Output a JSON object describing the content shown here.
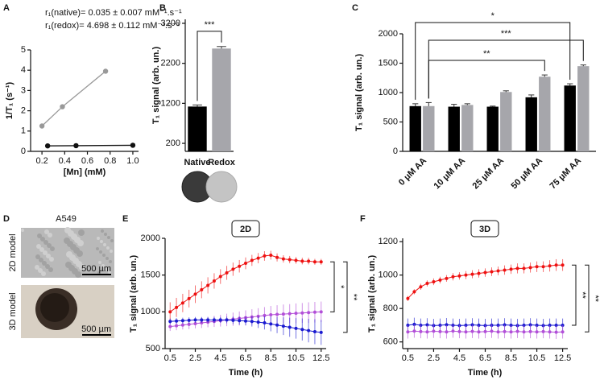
{
  "chart_data": [
    {
      "type": "line",
      "label": "A",
      "annotations": [
        "r₁(native)= 0.035 ± 0.007 mM⁻¹.s⁻¹",
        "r₁(redox)= 4.698 ± 0.112 mM⁻¹.s⁻¹"
      ],
      "xlabel": "[Mn] (mM)",
      "ylabel": "1/T₁ (s⁻¹)",
      "xlim": [
        0.1,
        1.05
      ],
      "xticks": [
        0.2,
        0.4,
        0.6,
        0.8,
        {
          "value": 1,
          "label": "1.0"
        }
      ],
      "ylim": [
        0,
        5
      ],
      "yticks": [
        0,
        1,
        2,
        3,
        4,
        5
      ],
      "markers": true,
      "series": [
        {
          "color": "#111111",
          "x": [
            0.25,
            0.5,
            1.0
          ],
          "values": [
            0.27,
            0.28,
            0.3
          ]
        },
        {
          "color": "#999999",
          "x": [
            0.2,
            0.38,
            0.76
          ],
          "values": [
            1.25,
            2.2,
            3.95
          ]
        }
      ]
    },
    {
      "type": "bar",
      "label": "B",
      "ylabel": "T₁ signal (arb. un.)",
      "categories": [
        "Native",
        "Redox"
      ],
      "values": [
        1120,
        2570
      ],
      "errors": [
        40,
        50
      ],
      "colors": [
        "#000000",
        "#a6a6ab"
      ],
      "ylim": [
        0,
        3300
      ],
      "yticks": [
        200,
        1200,
        2200,
        3200
      ],
      "significance": [
        "***"
      ]
    },
    {
      "type": "bar",
      "label": "C",
      "ylabel": "T₁ signal (arb. un.)",
      "categories": [
        "0 μM AA",
        "10 μM AA",
        "25 μM AA",
        "50 μM AA",
        "75 μM AA"
      ],
      "series": [
        {
          "color": "#000000",
          "values": [
            770,
            760,
            760,
            920,
            1120
          ],
          "errors": [
            40,
            40,
            10,
            40,
            30
          ]
        },
        {
          "color": "#a6a6ab",
          "values": [
            770,
            790,
            1010,
            1270,
            1450
          ],
          "errors": [
            60,
            20,
            20,
            30,
            20
          ]
        }
      ],
      "ylim": [
        0,
        2000
      ],
      "yticks": [
        0,
        500,
        1000,
        1500,
        2000
      ],
      "significance": [
        "*",
        "***",
        "**"
      ]
    },
    {
      "type": "image",
      "label": "D",
      "title": "A549",
      "captions": [
        "2D model",
        "3D model"
      ],
      "scalebars": [
        "500 µm",
        "500 µm"
      ]
    },
    {
      "type": "line",
      "label": "E",
      "title": "2D",
      "xlabel": "Time (h)",
      "ylabel": "T₁ signal (arb. un.)",
      "x": [
        0.5,
        1,
        1.5,
        2,
        2.5,
        3,
        3.5,
        4,
        4.5,
        5,
        5.5,
        6,
        6.5,
        7,
        7.5,
        8,
        8.5,
        9,
        9.5,
        10,
        10.5,
        11,
        11.5,
        12,
        12.5
      ],
      "xlim": [
        0.1,
        12.9
      ],
      "xticks": [
        0.5,
        2.5,
        4.5,
        6.5,
        8.5,
        10.5,
        12.5
      ],
      "ylim": [
        500,
        2000
      ],
      "yticks": [
        500,
        1000,
        1500,
        2000
      ],
      "markers": true,
      "series": [
        {
          "color": "#ee1111",
          "values": [
            1000,
            1060,
            1120,
            1180,
            1240,
            1300,
            1360,
            1420,
            1480,
            1530,
            1580,
            1620,
            1660,
            1700,
            1730,
            1760,
            1770,
            1740,
            1720,
            1710,
            1700,
            1690,
            1690,
            1680,
            1680
          ],
          "errors": [
            130,
            130,
            125,
            120,
            120,
            115,
            110,
            105,
            100,
            95,
            90,
            85,
            80,
            75,
            70,
            65,
            60,
            55,
            50,
            50,
            45,
            45,
            45,
            40,
            40
          ]
        },
        {
          "color": "#b24fd8",
          "values": [
            800,
            810,
            820,
            830,
            840,
            850,
            860,
            870,
            880,
            890,
            900,
            910,
            920,
            930,
            940,
            950,
            960,
            965,
            970,
            975,
            980,
            985,
            990,
            995,
            1000
          ],
          "errors": [
            60,
            60,
            60,
            65,
            65,
            70,
            70,
            75,
            80,
            85,
            90,
            95,
            100,
            105,
            110,
            115,
            120,
            125,
            130,
            130,
            135,
            135,
            140,
            140,
            140
          ]
        },
        {
          "color": "#1a1ad0",
          "values": [
            870,
            875,
            880,
            885,
            890,
            890,
            890,
            890,
            890,
            890,
            885,
            880,
            875,
            870,
            860,
            850,
            835,
            820,
            805,
            790,
            775,
            760,
            745,
            730,
            720
          ],
          "errors": [
            40,
            40,
            40,
            40,
            40,
            40,
            40,
            40,
            40,
            45,
            50,
            55,
            60,
            70,
            80,
            90,
            100,
            110,
            120,
            130,
            140,
            150,
            160,
            170,
            170
          ]
        }
      ],
      "significance": [
        "*",
        "**"
      ]
    },
    {
      "type": "line",
      "label": "F",
      "title": "3D",
      "xlabel": "Time (h)",
      "ylabel": "T₁ signal (arb. un.)",
      "x": [
        0.5,
        1,
        1.5,
        2,
        2.5,
        3,
        3.5,
        4,
        4.5,
        5,
        5.5,
        6,
        6.5,
        7,
        7.5,
        8,
        8.5,
        9,
        9.5,
        10,
        10.5,
        11,
        11.5,
        12,
        12.5
      ],
      "xlim": [
        0.1,
        12.9
      ],
      "xticks": [
        0.5,
        2.5,
        4.5,
        6.5,
        8.5,
        10.5,
        12.5
      ],
      "ylim": [
        560,
        1220
      ],
      "yticks": [
        600,
        800,
        1000,
        1200
      ],
      "markers": true,
      "series": [
        {
          "color": "#ee1111",
          "values": [
            860,
            900,
            930,
            950,
            960,
            970,
            980,
            990,
            995,
            1000,
            1005,
            1010,
            1015,
            1020,
            1025,
            1030,
            1035,
            1040,
            1040,
            1045,
            1050,
            1050,
            1055,
            1060,
            1060
          ],
          "errors": [
            15,
            15,
            18,
            18,
            20,
            20,
            20,
            22,
            22,
            24,
            24,
            25,
            25,
            26,
            26,
            28,
            28,
            30,
            30,
            30,
            32,
            32,
            34,
            35,
            35
          ]
        },
        {
          "color": "#1a1ad0",
          "values": [
            700,
            705,
            700,
            702,
            698,
            700,
            703,
            700,
            698,
            700,
            702,
            700,
            698,
            700,
            700,
            702,
            700,
            698,
            700,
            702,
            700,
            698,
            700,
            700,
            700
          ],
          "errors": [
            40,
            40,
            40,
            40,
            40,
            40,
            40,
            40,
            40,
            40,
            40,
            40,
            40,
            40,
            40,
            40,
            40,
            40,
            40,
            40,
            40,
            40,
            40,
            40,
            40
          ]
        },
        {
          "color": "#b24fd8",
          "values": [
            660,
            665,
            662,
            660,
            664,
            662,
            660,
            665,
            662,
            660,
            663,
            660,
            662,
            664,
            660,
            662,
            660,
            663,
            660,
            662,
            660,
            662,
            660,
            658,
            660
          ],
          "errors": [
            40,
            40,
            40,
            40,
            40,
            40,
            40,
            40,
            40,
            40,
            40,
            40,
            40,
            40,
            40,
            40,
            40,
            40,
            40,
            40,
            40,
            40,
            40,
            40,
            40
          ]
        }
      ],
      "significance": [
        "**",
        "**"
      ]
    }
  ]
}
